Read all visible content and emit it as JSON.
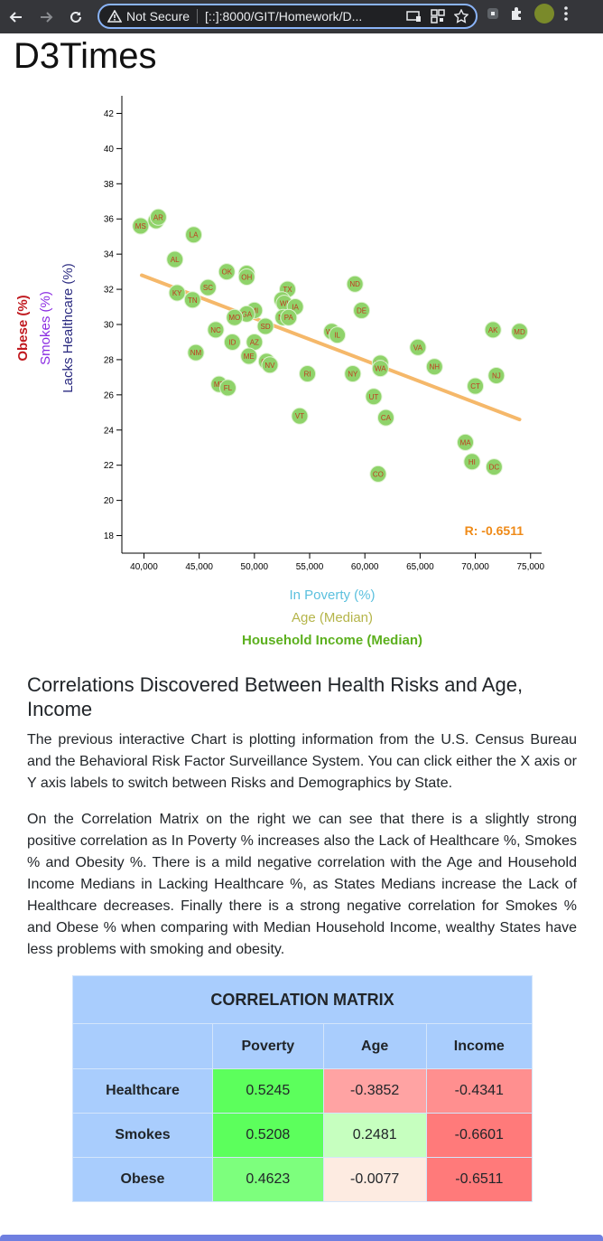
{
  "browser": {
    "security_label": "Not Secure",
    "url": "[::]:8000/GIT/Homework/D..."
  },
  "brand": "D3Times",
  "chart_data": {
    "type": "scatter",
    "x_ticks": [
      "40,000",
      "45,000",
      "50,000",
      "55,000",
      "60,000",
      "65,000",
      "70,000",
      "75,000"
    ],
    "y_ticks": [
      "18",
      "20",
      "22",
      "24",
      "26",
      "28",
      "30",
      "32",
      "34",
      "36",
      "38",
      "40",
      "42"
    ],
    "xlim": [
      38000,
      76000
    ],
    "ylim": [
      17,
      43
    ],
    "x_axis_labels": [
      {
        "text": "In Poverty (%)",
        "color": "#5bc0de",
        "active": false
      },
      {
        "text": "Age (Median)",
        "color": "#b5b54a",
        "active": false
      },
      {
        "text": "Household Income (Median)",
        "color": "#5cb01e",
        "active": true
      }
    ],
    "y_axis_labels": [
      {
        "text": "Lacks Healthcare (%)",
        "color": "#2a2a80",
        "active": false
      },
      {
        "text": "Smokes (%)",
        "color": "#8a2be2",
        "active": false
      },
      {
        "text": "Obese (%)",
        "color": "#c0191f",
        "active": true
      }
    ],
    "regression": {
      "x1": 39800,
      "y1": 32.8,
      "x2": 74000,
      "y2": 24.6,
      "color": "#f5b86a"
    },
    "r_label": "R: -0.6511",
    "point_color": "#8fd36a",
    "label_color": "#c0391f",
    "points": [
      {
        "abbr": "MS",
        "x": 39700,
        "y": 35.6
      },
      {
        "abbr": "WV",
        "x": 41100,
        "y": 35.9
      },
      {
        "abbr": "AR",
        "x": 41300,
        "y": 36.1
      },
      {
        "abbr": "LA",
        "x": 44500,
        "y": 35.1
      },
      {
        "abbr": "AL",
        "x": 42800,
        "y": 33.7
      },
      {
        "abbr": "OK",
        "x": 47500,
        "y": 33.0
      },
      {
        "abbr": "IN",
        "x": 49300,
        "y": 32.9
      },
      {
        "abbr": "OH",
        "x": 49300,
        "y": 32.7
      },
      {
        "abbr": "SC",
        "x": 45800,
        "y": 32.1
      },
      {
        "abbr": "KY",
        "x": 43000,
        "y": 31.8
      },
      {
        "abbr": "TN",
        "x": 44400,
        "y": 31.4
      },
      {
        "abbr": "TX",
        "x": 53000,
        "y": 32.0
      },
      {
        "abbr": "ND",
        "x": 59100,
        "y": 32.3
      },
      {
        "abbr": "KS",
        "x": 52500,
        "y": 31.4
      },
      {
        "abbr": "WI",
        "x": 52700,
        "y": 31.2
      },
      {
        "abbr": "IA",
        "x": 53700,
        "y": 31.0
      },
      {
        "abbr": "DE",
        "x": 59700,
        "y": 30.8
      },
      {
        "abbr": "MI",
        "x": 50000,
        "y": 30.8
      },
      {
        "abbr": "GA",
        "x": 49300,
        "y": 30.6
      },
      {
        "abbr": "MO",
        "x": 48200,
        "y": 30.4
      },
      {
        "abbr": "NE",
        "x": 52600,
        "y": 30.4
      },
      {
        "abbr": "PA",
        "x": 53100,
        "y": 30.4
      },
      {
        "abbr": "SD",
        "x": 51000,
        "y": 29.9
      },
      {
        "abbr": "NC",
        "x": 46500,
        "y": 29.7
      },
      {
        "abbr": "WY",
        "x": 57000,
        "y": 29.6
      },
      {
        "abbr": "IL",
        "x": 57500,
        "y": 29.4
      },
      {
        "abbr": "AK",
        "x": 71600,
        "y": 29.7
      },
      {
        "abbr": "MD",
        "x": 74000,
        "y": 29.6
      },
      {
        "abbr": "ID",
        "x": 48000,
        "y": 29.0
      },
      {
        "abbr": "AZ",
        "x": 50000,
        "y": 29.0
      },
      {
        "abbr": "VA",
        "x": 64800,
        "y": 28.7
      },
      {
        "abbr": "NM",
        "x": 44700,
        "y": 28.4
      },
      {
        "abbr": "ME",
        "x": 49500,
        "y": 28.2
      },
      {
        "abbr": "OR",
        "x": 51100,
        "y": 27.9
      },
      {
        "abbr": "NV",
        "x": 51400,
        "y": 27.7
      },
      {
        "abbr": "MN",
        "x": 61400,
        "y": 27.8
      },
      {
        "abbr": "WA",
        "x": 61400,
        "y": 27.5
      },
      {
        "abbr": "NH",
        "x": 66300,
        "y": 27.6
      },
      {
        "abbr": "RI",
        "x": 54800,
        "y": 27.2
      },
      {
        "abbr": "NY",
        "x": 58900,
        "y": 27.2
      },
      {
        "abbr": "NJ",
        "x": 71900,
        "y": 27.1
      },
      {
        "abbr": "MT",
        "x": 46800,
        "y": 26.6
      },
      {
        "abbr": "FL",
        "x": 47600,
        "y": 26.4
      },
      {
        "abbr": "CT",
        "x": 70000,
        "y": 26.5
      },
      {
        "abbr": "UT",
        "x": 60800,
        "y": 25.9
      },
      {
        "abbr": "VT",
        "x": 54100,
        "y": 24.8
      },
      {
        "abbr": "CA",
        "x": 61900,
        "y": 24.7
      },
      {
        "abbr": "MA",
        "x": 69100,
        "y": 23.3
      },
      {
        "abbr": "HI",
        "x": 69700,
        "y": 22.2
      },
      {
        "abbr": "DC",
        "x": 71700,
        "y": 21.9
      },
      {
        "abbr": "CO",
        "x": 61200,
        "y": 21.5
      }
    ]
  },
  "article": {
    "heading": "Correlations Discovered Between Health Risks and Age, Income",
    "para1": "The previous interactive Chart is plotting information from the U.S. Census Bureau and the Behavioral Risk Factor Surveillance System. You can click either the X axis or Y axis labels to switch between Risks and Demographics by State.",
    "para2": "On the Correlation Matrix on the right we can see that there is a slightly strong positive correlation as In Poverty % increases also the Lack of Healthcare %, Smokes % and Obesity %. There is a mild negative correlation with the Age and Household Income Medians in Lacking Healthcare %, as States Medians increase the Lack of Healthcare decreases. Finally there is a strong negative correlation for Smokes % and Obese % when comparing with Median Household Income, wealthy States have less problems with smoking and obesity."
  },
  "matrix": {
    "title": "CORRELATION MATRIX",
    "columns": [
      "Poverty",
      "Age",
      "Income"
    ],
    "rows": [
      {
        "name": "Healthcare",
        "cells": [
          {
            "value": "0.5245",
            "color": "#5cff5c"
          },
          {
            "value": "-0.3852",
            "color": "#ffa3a3"
          },
          {
            "value": "-0.4341",
            "color": "#ff8f8f"
          }
        ]
      },
      {
        "name": "Smokes",
        "cells": [
          {
            "value": "0.5208",
            "color": "#5cff5c"
          },
          {
            "value": "0.2481",
            "color": "#c6ffbf"
          },
          {
            "value": "-0.6601",
            "color": "#ff7a7a"
          }
        ]
      },
      {
        "name": "Obese",
        "cells": [
          {
            "value": "0.4623",
            "color": "#7dff7d"
          },
          {
            "value": "-0.0077",
            "color": "#fdebe1"
          },
          {
            "value": "-0.6511",
            "color": "#ff7a7a"
          }
        ]
      }
    ]
  }
}
